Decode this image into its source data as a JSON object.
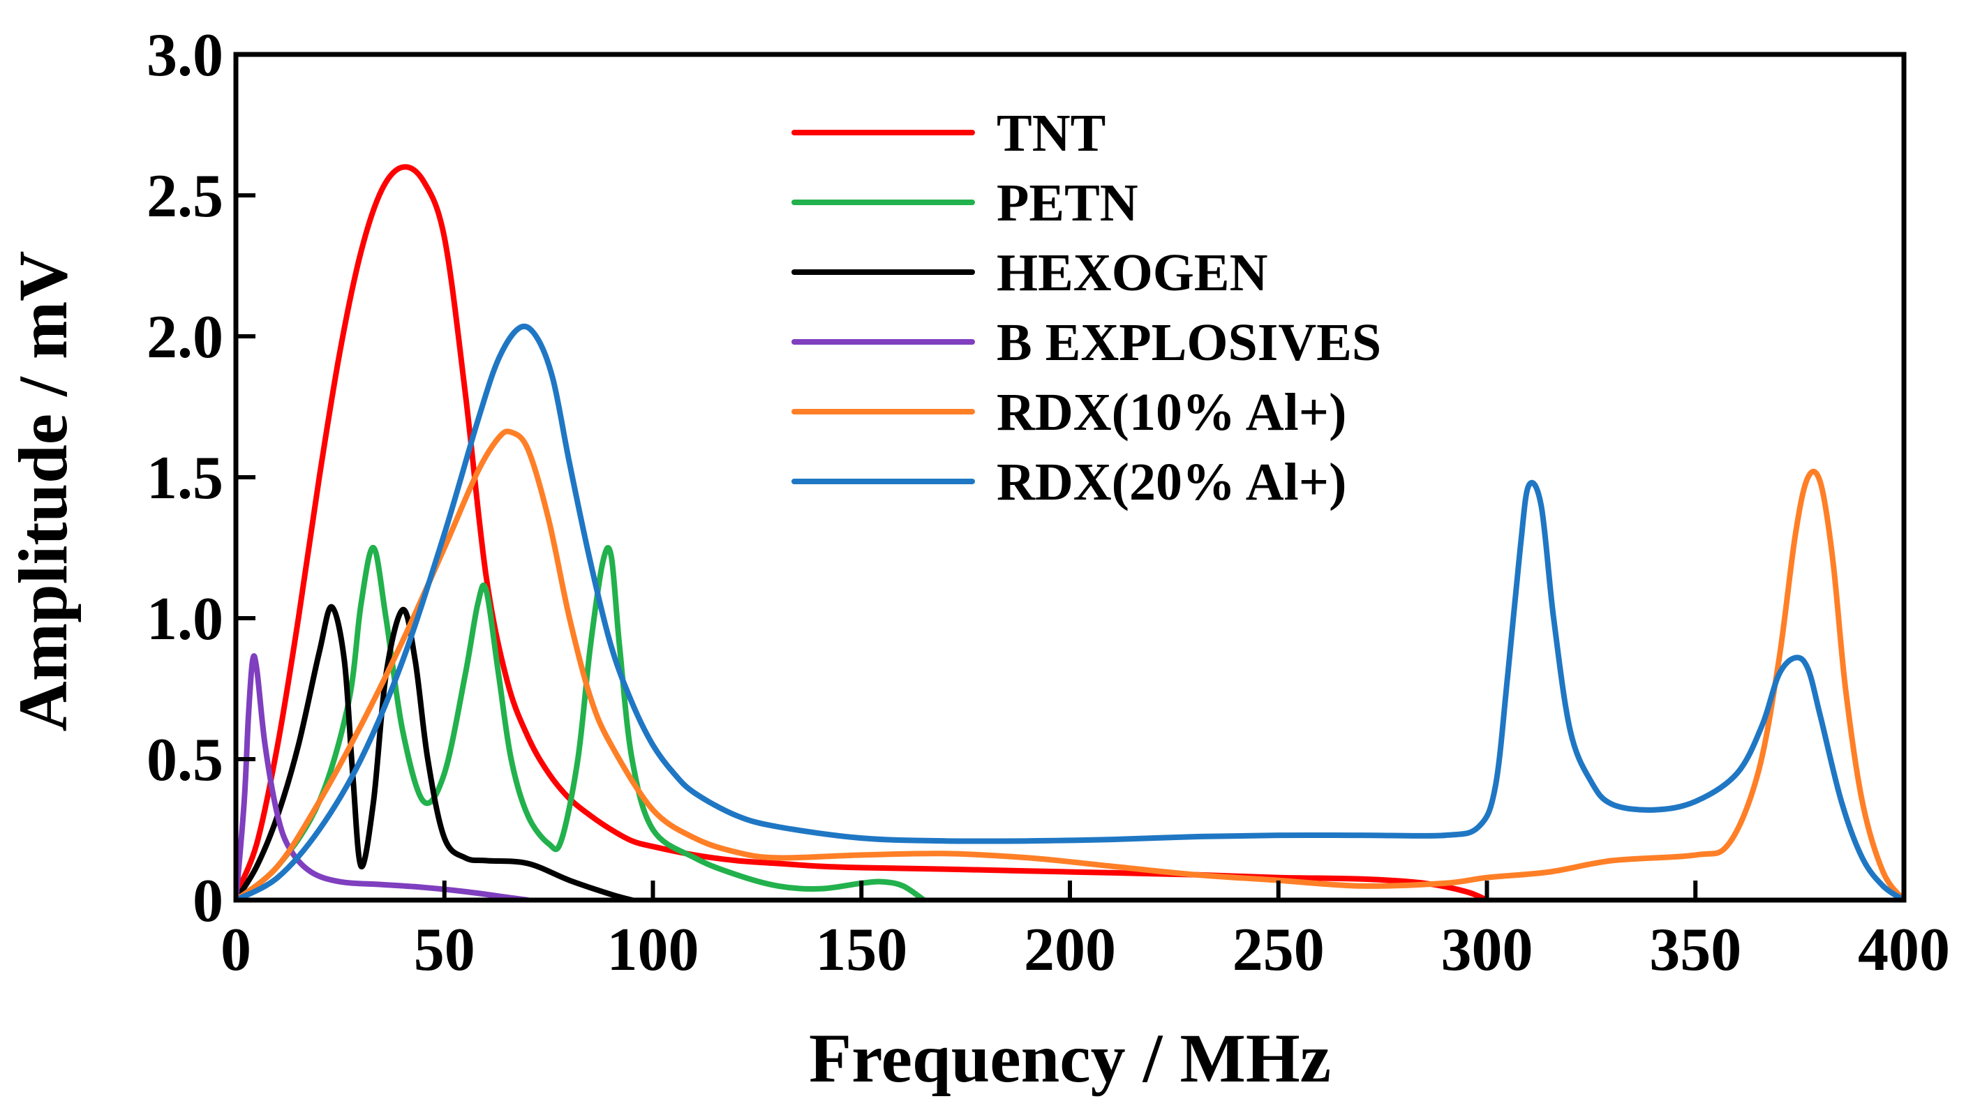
{
  "chart_data": {
    "type": "line",
    "title": "",
    "xlabel": "Frequency / MHz",
    "ylabel": "Amplitude / mV",
    "xlim": [
      0,
      400
    ],
    "ylim": [
      0,
      3.0
    ],
    "x_ticks": [
      0,
      50,
      100,
      150,
      200,
      250,
      300,
      350,
      400
    ],
    "x_tick_labels": [
      "0",
      "50",
      "100",
      "150",
      "200",
      "250",
      "300",
      "350",
      "400"
    ],
    "y_ticks": [
      0,
      0.5,
      1.0,
      1.5,
      2.0,
      2.5,
      3.0
    ],
    "y_tick_labels": [
      "0",
      "0.5",
      "1.0",
      "1.5",
      "2.0",
      "2.5",
      "3.0"
    ],
    "grid": false,
    "legend_position": "top-center",
    "series": [
      {
        "name": "TNT",
        "color": "#ff0000",
        "points": [
          [
            0,
            0.02
          ],
          [
            5,
            0.2
          ],
          [
            10,
            0.55
          ],
          [
            15,
            1.0
          ],
          [
            20,
            1.5
          ],
          [
            25,
            1.95
          ],
          [
            30,
            2.3
          ],
          [
            35,
            2.52
          ],
          [
            40,
            2.6
          ],
          [
            45,
            2.55
          ],
          [
            50,
            2.35
          ],
          [
            55,
            1.8
          ],
          [
            60,
            1.15
          ],
          [
            65,
            0.78
          ],
          [
            70,
            0.58
          ],
          [
            75,
            0.45
          ],
          [
            80,
            0.36
          ],
          [
            85,
            0.3
          ],
          [
            90,
            0.25
          ],
          [
            95,
            0.21
          ],
          [
            100,
            0.19
          ],
          [
            110,
            0.16
          ],
          [
            120,
            0.14
          ],
          [
            130,
            0.13
          ],
          [
            140,
            0.12
          ],
          [
            150,
            0.115
          ],
          [
            170,
            0.11
          ],
          [
            200,
            0.1
          ],
          [
            230,
            0.09
          ],
          [
            250,
            0.08
          ],
          [
            270,
            0.075
          ],
          [
            285,
            0.06
          ],
          [
            295,
            0.03
          ],
          [
            300,
            0.0
          ]
        ]
      },
      {
        "name": "PETN",
        "color": "#22b14c",
        "points": [
          [
            0,
            0.0
          ],
          [
            10,
            0.12
          ],
          [
            20,
            0.35
          ],
          [
            27,
            0.7
          ],
          [
            30,
            1.05
          ],
          [
            33,
            1.25
          ],
          [
            36,
            1.0
          ],
          [
            40,
            0.6
          ],
          [
            45,
            0.35
          ],
          [
            50,
            0.45
          ],
          [
            55,
            0.8
          ],
          [
            58,
            1.05
          ],
          [
            60,
            1.1
          ],
          [
            63,
            0.8
          ],
          [
            66,
            0.5
          ],
          [
            70,
            0.3
          ],
          [
            75,
            0.2
          ],
          [
            78,
            0.21
          ],
          [
            82,
            0.5
          ],
          [
            85,
            0.9
          ],
          [
            88,
            1.2
          ],
          [
            90,
            1.22
          ],
          [
            92,
            0.9
          ],
          [
            95,
            0.5
          ],
          [
            100,
            0.25
          ],
          [
            110,
            0.15
          ],
          [
            120,
            0.09
          ],
          [
            130,
            0.05
          ],
          [
            140,
            0.04
          ],
          [
            150,
            0.06
          ],
          [
            155,
            0.065
          ],
          [
            160,
            0.05
          ],
          [
            165,
            0.0
          ]
        ]
      },
      {
        "name": "HEXOGEN",
        "color": "#000000",
        "points": [
          [
            0,
            0.0
          ],
          [
            5,
            0.12
          ],
          [
            10,
            0.3
          ],
          [
            15,
            0.55
          ],
          [
            20,
            0.88
          ],
          [
            23,
            1.04
          ],
          [
            26,
            0.85
          ],
          [
            28,
            0.45
          ],
          [
            30,
            0.12
          ],
          [
            33,
            0.35
          ],
          [
            36,
            0.8
          ],
          [
            40,
            1.03
          ],
          [
            43,
            0.85
          ],
          [
            46,
            0.5
          ],
          [
            50,
            0.22
          ],
          [
            55,
            0.15
          ],
          [
            60,
            0.14
          ],
          [
            70,
            0.13
          ],
          [
            80,
            0.07
          ],
          [
            90,
            0.02
          ],
          [
            95,
            0.0
          ]
        ]
      },
      {
        "name": "B EXPLOSIVES",
        "color": "#7f3fbf",
        "points": [
          [
            0,
            0.0
          ],
          [
            2,
            0.35
          ],
          [
            3,
            0.65
          ],
          [
            4,
            0.85
          ],
          [
            5,
            0.82
          ],
          [
            7,
            0.55
          ],
          [
            10,
            0.3
          ],
          [
            13,
            0.18
          ],
          [
            18,
            0.1
          ],
          [
            25,
            0.065
          ],
          [
            35,
            0.055
          ],
          [
            45,
            0.045
          ],
          [
            55,
            0.03
          ],
          [
            65,
            0.01
          ],
          [
            70,
            0.0
          ]
        ]
      },
      {
        "name": "RDX(10% Al+)",
        "color": "#ff7f27",
        "points": [
          [
            0,
            0.0
          ],
          [
            10,
            0.12
          ],
          [
            20,
            0.35
          ],
          [
            30,
            0.62
          ],
          [
            40,
            0.92
          ],
          [
            50,
            1.25
          ],
          [
            58,
            1.52
          ],
          [
            63,
            1.64
          ],
          [
            66,
            1.66
          ],
          [
            70,
            1.6
          ],
          [
            75,
            1.35
          ],
          [
            80,
            1.0
          ],
          [
            85,
            0.72
          ],
          [
            90,
            0.55
          ],
          [
            100,
            0.32
          ],
          [
            110,
            0.22
          ],
          [
            120,
            0.17
          ],
          [
            130,
            0.15
          ],
          [
            150,
            0.16
          ],
          [
            170,
            0.165
          ],
          [
            190,
            0.15
          ],
          [
            210,
            0.12
          ],
          [
            230,
            0.09
          ],
          [
            250,
            0.07
          ],
          [
            270,
            0.05
          ],
          [
            290,
            0.06
          ],
          [
            300,
            0.08
          ],
          [
            315,
            0.1
          ],
          [
            330,
            0.14
          ],
          [
            350,
            0.16
          ],
          [
            358,
            0.2
          ],
          [
            365,
            0.45
          ],
          [
            370,
            0.85
          ],
          [
            374,
            1.3
          ],
          [
            377,
            1.5
          ],
          [
            380,
            1.48
          ],
          [
            383,
            1.2
          ],
          [
            386,
            0.75
          ],
          [
            390,
            0.35
          ],
          [
            395,
            0.1
          ],
          [
            400,
            0.0
          ]
        ]
      },
      {
        "name": "RDX(20% Al+)",
        "color": "#1f77c4",
        "points": [
          [
            0,
            0.0
          ],
          [
            10,
            0.08
          ],
          [
            20,
            0.25
          ],
          [
            30,
            0.5
          ],
          [
            40,
            0.85
          ],
          [
            50,
            1.3
          ],
          [
            58,
            1.7
          ],
          [
            63,
            1.92
          ],
          [
            68,
            2.03
          ],
          [
            72,
            2.0
          ],
          [
            76,
            1.85
          ],
          [
            80,
            1.55
          ],
          [
            85,
            1.2
          ],
          [
            90,
            0.9
          ],
          [
            95,
            0.7
          ],
          [
            100,
            0.55
          ],
          [
            105,
            0.45
          ],
          [
            110,
            0.38
          ],
          [
            120,
            0.3
          ],
          [
            130,
            0.26
          ],
          [
            150,
            0.22
          ],
          [
            170,
            0.21
          ],
          [
            190,
            0.21
          ],
          [
            210,
            0.215
          ],
          [
            230,
            0.225
          ],
          [
            250,
            0.23
          ],
          [
            270,
            0.23
          ],
          [
            290,
            0.23
          ],
          [
            298,
            0.26
          ],
          [
            302,
            0.4
          ],
          [
            305,
            0.8
          ],
          [
            308,
            1.25
          ],
          [
            310,
            1.47
          ],
          [
            313,
            1.4
          ],
          [
            316,
            1.0
          ],
          [
            320,
            0.6
          ],
          [
            325,
            0.42
          ],
          [
            330,
            0.34
          ],
          [
            340,
            0.32
          ],
          [
            350,
            0.35
          ],
          [
            360,
            0.45
          ],
          [
            366,
            0.62
          ],
          [
            370,
            0.8
          ],
          [
            374,
            0.86
          ],
          [
            377,
            0.82
          ],
          [
            380,
            0.65
          ],
          [
            385,
            0.35
          ],
          [
            390,
            0.15
          ],
          [
            395,
            0.05
          ],
          [
            400,
            0.0
          ]
        ]
      }
    ]
  }
}
